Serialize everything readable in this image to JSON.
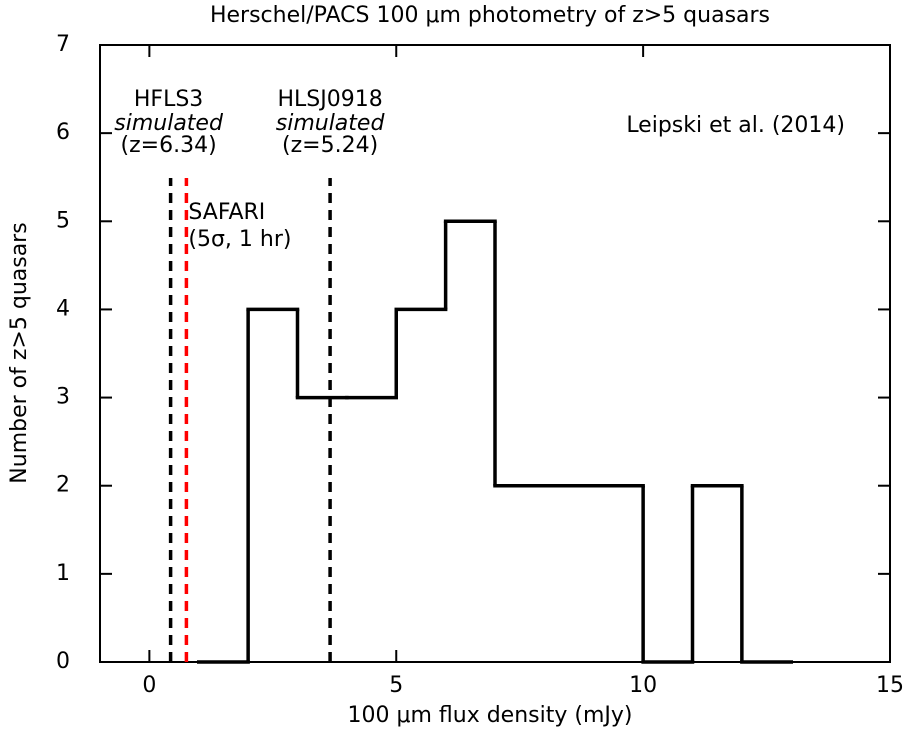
{
  "chart_data": {
    "type": "histogram",
    "title": "Herschel/PACS 100 μm photometry of z>5 quasars",
    "xlabel": "100 μm flux density (mJy)",
    "ylabel": "Number of z>5 quasars",
    "bins": [
      1,
      2,
      3,
      4,
      5,
      6,
      7,
      8,
      9,
      10,
      11,
      12,
      13
    ],
    "values": [
      0,
      4,
      3,
      3,
      4,
      5,
      2,
      2,
      2,
      0,
      2,
      0
    ],
    "color": "#000000",
    "xlim": [
      -1,
      15
    ],
    "xticks": [
      0,
      5,
      10,
      15
    ],
    "ylim": [
      0,
      7
    ],
    "yticks": [
      0,
      1,
      2,
      3,
      4,
      5,
      6,
      7
    ],
    "markers": [
      {
        "x": 0.43,
        "color": "#000000",
        "label": [
          "HFLS3",
          "simulated",
          "(z=6.34)"
        ]
      },
      {
        "x": 0.75,
        "color": "#ff0000",
        "label": [
          "SAFARI",
          "(5σ, 1 hr)"
        ]
      },
      {
        "x": 3.66,
        "color": "#000000",
        "label": [
          "HLSJ0918",
          "simulated",
          "(z=5.24)"
        ]
      }
    ],
    "annotation": "Leipski et al. (2014)"
  }
}
